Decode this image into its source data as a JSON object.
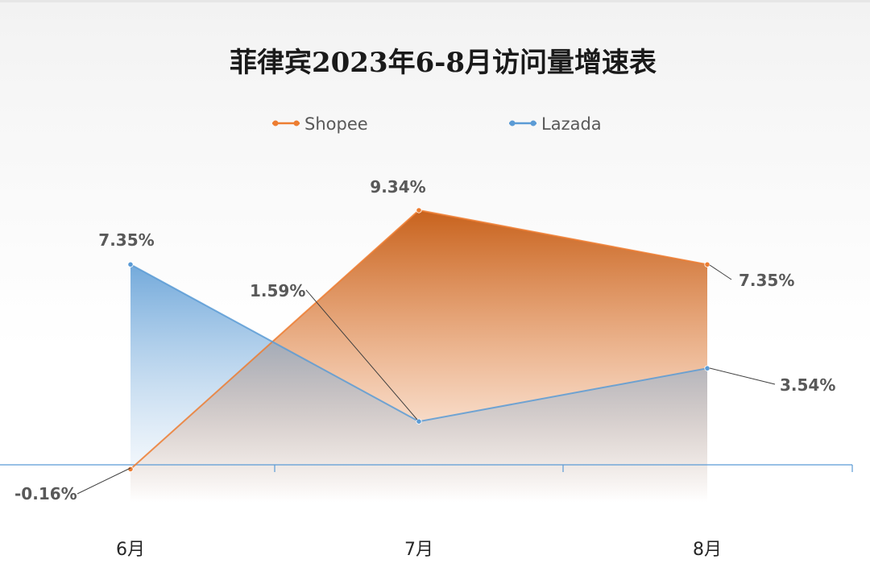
{
  "chart_data": {
    "type": "area",
    "title": "菲律宾2023年6-8月访问量增速表",
    "categories": [
      "6月",
      "7月",
      "8月"
    ],
    "series": [
      {
        "name": "Shopee",
        "values": [
          -0.16,
          9.34,
          7.35
        ],
        "labels": [
          "-0.16%",
          "9.34%",
          "7.35%"
        ],
        "color": "#ED7D31"
      },
      {
        "name": "Lazada",
        "values": [
          7.35,
          1.59,
          3.54
        ],
        "labels": [
          "7.35%",
          "1.59%",
          "3.54%"
        ],
        "color": "#5B9BD5"
      }
    ],
    "ylim": [
      -3,
      11
    ],
    "grid": false,
    "legend_position": "top"
  }
}
